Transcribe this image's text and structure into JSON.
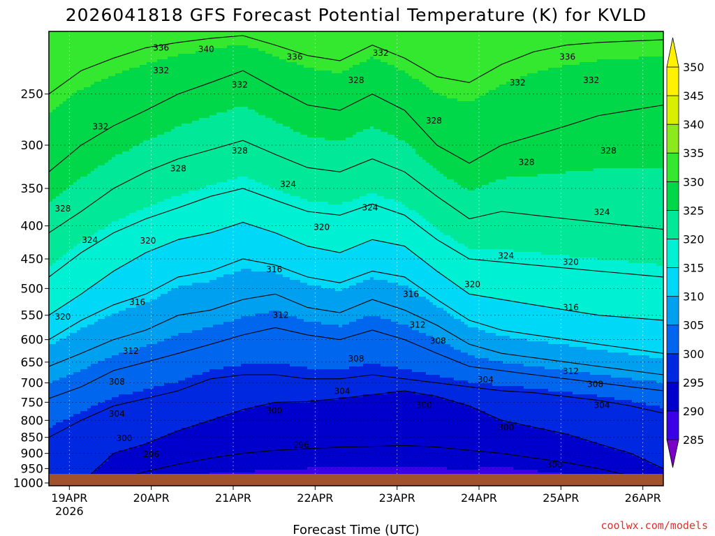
{
  "chart_data": {
    "type": "heatmap",
    "title": "2026041818 GFS Forecast Potential Temperature (K) for KVLD",
    "xlabel": "Forecast Time (UTC)",
    "ylabel": "",
    "credit": "coolwx.com/models",
    "x_ticks": [
      "19APR",
      "20APR",
      "21APR",
      "22APR",
      "23APR",
      "24APR",
      "25APR",
      "26APR"
    ],
    "x_year": "2026",
    "x_range_days": [
      -0.25,
      7.25
    ],
    "y_ticks": [
      250,
      300,
      350,
      400,
      450,
      500,
      550,
      600,
      650,
      700,
      750,
      800,
      850,
      900,
      950,
      1000
    ],
    "y_range_hpa": [
      200,
      1010
    ],
    "y_scale": "log-pressure (reversed)",
    "grid": "dotted",
    "colorbar": {
      "levels": [
        285,
        290,
        295,
        300,
        305,
        310,
        315,
        320,
        325,
        330,
        335,
        340,
        345,
        350
      ],
      "colors": [
        "#7a00c8",
        "#3a00e6",
        "#0000cc",
        "#0028e0",
        "#0066ee",
        "#00a0f0",
        "#00d8f8",
        "#00f0d4",
        "#00e898",
        "#00d84a",
        "#34e830",
        "#8ee81e",
        "#d8f000",
        "#fff200"
      ]
    },
    "ground_color": "#a0522d",
    "contours": [
      {
        "level": 296,
        "p": [
          1000,
          1000,
          990,
          960,
          935,
          915,
          900,
          890,
          885,
          880,
          878,
          875,
          880,
          890,
          900,
          915,
          930,
          950,
          975,
          1000
        ]
      },
      {
        "level": 300,
        "p": [
          1000,
          1000,
          900,
          870,
          830,
          800,
          770,
          750,
          748,
          740,
          730,
          720,
          735,
          760,
          800,
          820,
          840,
          870,
          900,
          950
        ]
      },
      {
        "level": 304,
        "p": [
          850,
          800,
          760,
          740,
          720,
          690,
          680,
          680,
          690,
          690,
          680,
          690,
          700,
          710,
          720,
          725,
          735,
          745,
          760,
          780
        ]
      },
      {
        "level": 308,
        "p": [
          740,
          710,
          670,
          650,
          630,
          610,
          590,
          575,
          590,
          600,
          580,
          600,
          630,
          660,
          670,
          680,
          690,
          700,
          710,
          720
        ]
      },
      {
        "level": 312,
        "p": [
          660,
          630,
          600,
          580,
          550,
          540,
          520,
          510,
          535,
          545,
          520,
          540,
          570,
          610,
          630,
          640,
          650,
          660,
          670,
          680
        ]
      },
      {
        "level": 316,
        "p": [
          600,
          560,
          530,
          510,
          480,
          470,
          450,
          460,
          480,
          490,
          470,
          480,
          520,
          560,
          580,
          590,
          600,
          610,
          620,
          630
        ]
      },
      {
        "level": 320,
        "p": [
          550,
          510,
          470,
          440,
          420,
          410,
          395,
          410,
          430,
          440,
          420,
          430,
          470,
          510,
          520,
          530,
          540,
          550,
          555,
          560
        ]
      },
      {
        "level": 324,
        "p": [
          480,
          440,
          410,
          390,
          375,
          360,
          350,
          365,
          380,
          385,
          370,
          385,
          420,
          450,
          455,
          460,
          465,
          470,
          475,
          480
        ]
      },
      {
        "level": 328,
        "p": [
          410,
          380,
          350,
          330,
          315,
          305,
          295,
          310,
          325,
          330,
          315,
          330,
          360,
          390,
          380,
          385,
          390,
          395,
          400,
          405
        ]
      },
      {
        "level": 332,
        "p": [
          330,
          300,
          280,
          265,
          250,
          240,
          230,
          245,
          260,
          265,
          250,
          265,
          300,
          320,
          300,
          290,
          280,
          270,
          265,
          260
        ]
      },
      {
        "level": 336,
        "p": [
          250,
          230,
          220,
          212,
          208,
          205,
          203,
          210,
          218,
          222,
          210,
          220,
          235,
          240,
          225,
          215,
          210,
          208,
          207,
          206
        ]
      }
    ],
    "contour_labels": [
      {
        "text": "336",
        "x": 1.12,
        "p": 212
      },
      {
        "text": "340",
        "x": 1.67,
        "p": 213
      },
      {
        "text": "336",
        "x": 2.75,
        "p": 219
      },
      {
        "text": "332",
        "x": 3.8,
        "p": 216
      },
      {
        "text": "336",
        "x": 6.08,
        "p": 219
      },
      {
        "text": "332",
        "x": 1.12,
        "p": 230
      },
      {
        "text": "332",
        "x": 2.08,
        "p": 242
      },
      {
        "text": "328",
        "x": 3.5,
        "p": 238
      },
      {
        "text": "332",
        "x": 5.47,
        "p": 240
      },
      {
        "text": "332",
        "x": 6.37,
        "p": 238
      },
      {
        "text": "332",
        "x": 0.38,
        "p": 281
      },
      {
        "text": "328",
        "x": 4.45,
        "p": 275
      },
      {
        "text": "328",
        "x": 1.33,
        "p": 326
      },
      {
        "text": "328",
        "x": 2.08,
        "p": 306
      },
      {
        "text": "328",
        "x": 5.58,
        "p": 319
      },
      {
        "text": "328",
        "x": 6.58,
        "p": 306
      },
      {
        "text": "324",
        "x": 2.67,
        "p": 345
      },
      {
        "text": "324",
        "x": 3.67,
        "p": 375
      },
      {
        "text": "324",
        "x": 6.5,
        "p": 381
      },
      {
        "text": "328",
        "x": -0.08,
        "p": 376
      },
      {
        "text": "320",
        "x": 3.08,
        "p": 402
      },
      {
        "text": "324",
        "x": 0.25,
        "p": 421
      },
      {
        "text": "320",
        "x": 0.96,
        "p": 422
      },
      {
        "text": "324",
        "x": 5.33,
        "p": 445
      },
      {
        "text": "320",
        "x": 6.12,
        "p": 455
      },
      {
        "text": "316",
        "x": 2.5,
        "p": 467
      },
      {
        "text": "320",
        "x": 4.92,
        "p": 493
      },
      {
        "text": "316",
        "x": 4.17,
        "p": 510
      },
      {
        "text": "316",
        "x": 0.83,
        "p": 525
      },
      {
        "text": "316",
        "x": 6.12,
        "p": 535
      },
      {
        "text": "320",
        "x": -0.08,
        "p": 553
      },
      {
        "text": "312",
        "x": 2.58,
        "p": 550
      },
      {
        "text": "312",
        "x": 4.25,
        "p": 569
      },
      {
        "text": "308",
        "x": 4.5,
        "p": 603
      },
      {
        "text": "312",
        "x": 0.75,
        "p": 625
      },
      {
        "text": "308",
        "x": 3.5,
        "p": 642
      },
      {
        "text": "312",
        "x": 6.12,
        "p": 672
      },
      {
        "text": "304",
        "x": 5.08,
        "p": 692
      },
      {
        "text": "308",
        "x": 0.58,
        "p": 697
      },
      {
        "text": "304",
        "x": 3.33,
        "p": 721
      },
      {
        "text": "308",
        "x": 6.42,
        "p": 703
      },
      {
        "text": "304",
        "x": 0.58,
        "p": 782
      },
      {
        "text": "300",
        "x": 2.5,
        "p": 773
      },
      {
        "text": "300",
        "x": 4.33,
        "p": 758
      },
      {
        "text": "304",
        "x": 6.5,
        "p": 758
      },
      {
        "text": "300",
        "x": 5.33,
        "p": 821
      },
      {
        "text": "300",
        "x": 0.67,
        "p": 853
      },
      {
        "text": "296",
        "x": 2.83,
        "p": 873
      },
      {
        "text": "296",
        "x": 1.0,
        "p": 903
      },
      {
        "text": "300",
        "x": 5.92,
        "p": 937
      }
    ]
  }
}
